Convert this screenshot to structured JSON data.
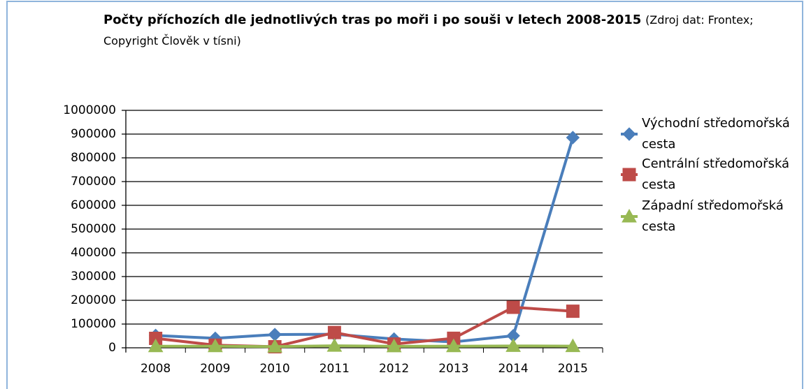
{
  "chart_data": {
    "type": "line",
    "title": "Počty příchozích dle jednotlivých tras po moři i po souši v letech 2008-2015",
    "subtitle": "(Zdroj dat: Frontex; Copyright Člověk v tísni)",
    "categories": [
      "2008",
      "2009",
      "2010",
      "2011",
      "2012",
      "2013",
      "2014",
      "2015"
    ],
    "series": [
      {
        "name": "Východní středomořská cesta",
        "color": "#4a7ebb",
        "marker": "diamond",
        "values": [
          52000,
          40000,
          55700,
          57000,
          37000,
          24800,
          50800,
          885400
        ]
      },
      {
        "name": "Centrální středomořská cesta",
        "color": "#be4b48",
        "marker": "square",
        "values": [
          39800,
          11000,
          4500,
          64300,
          15900,
          40000,
          170700,
          154000
        ]
      },
      {
        "name": "Západní středomořská cesta",
        "color": "#98b954",
        "marker": "triangle",
        "values": [
          6500,
          6600,
          5000,
          8450,
          6400,
          6800,
          7840,
          7000
        ]
      }
    ],
    "ylim": [
      0,
      1000000
    ],
    "yticks": [
      0,
      100000,
      200000,
      300000,
      400000,
      500000,
      600000,
      700000,
      800000,
      900000,
      1000000
    ],
    "grid": true,
    "legend": "right"
  }
}
